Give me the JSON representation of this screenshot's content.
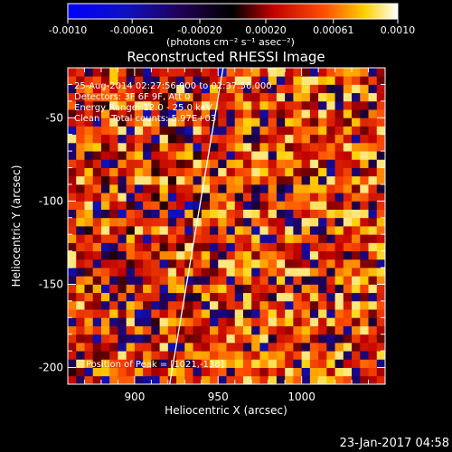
{
  "chart_data": {
    "type": "heatmap",
    "title": "Reconstructed RHESSI Image",
    "xlabel": "Heliocentric X (arcsec)",
    "ylabel": "Heliocentric Y (arcsec)",
    "xlim": [
      860,
      1050
    ],
    "ylim": [
      -210,
      -20
    ],
    "x_ticks": [
      900,
      950,
      1000
    ],
    "y_ticks": [
      -50,
      -100,
      -150,
      -200
    ],
    "colorbar": {
      "colormap": "hot",
      "range": [
        -0.001,
        0.001
      ],
      "tick_labels": [
        "-0.0010",
        "-0.00061",
        "-0.00020",
        "0.00020",
        "0.00061",
        "0.0010"
      ],
      "tick_values": [
        -0.001,
        -0.00061,
        -0.0002,
        0.0002,
        0.00061,
        0.001
      ],
      "units": "(photons cm⁻² s⁻¹ asec⁻²)"
    },
    "annotations": [
      "25-Aug-2014 02:27:56.000 to 02:37:56.000",
      "Detectors: 3F 6F 9F, Att 0",
      "Energy Range: 12.0 - 25.0 keV",
      "Clean    Total counts: 5.97E+03"
    ],
    "peak_label": "Position of Peak = [1021,-138]",
    "limb_line": {
      "x": [
        921,
        953
      ],
      "y": [
        -210,
        -20
      ]
    },
    "grid_cells": {
      "x_step": 5,
      "y_step": 5
    }
  },
  "footer": {
    "timestamp": "23-Jan-2017 04:58"
  }
}
